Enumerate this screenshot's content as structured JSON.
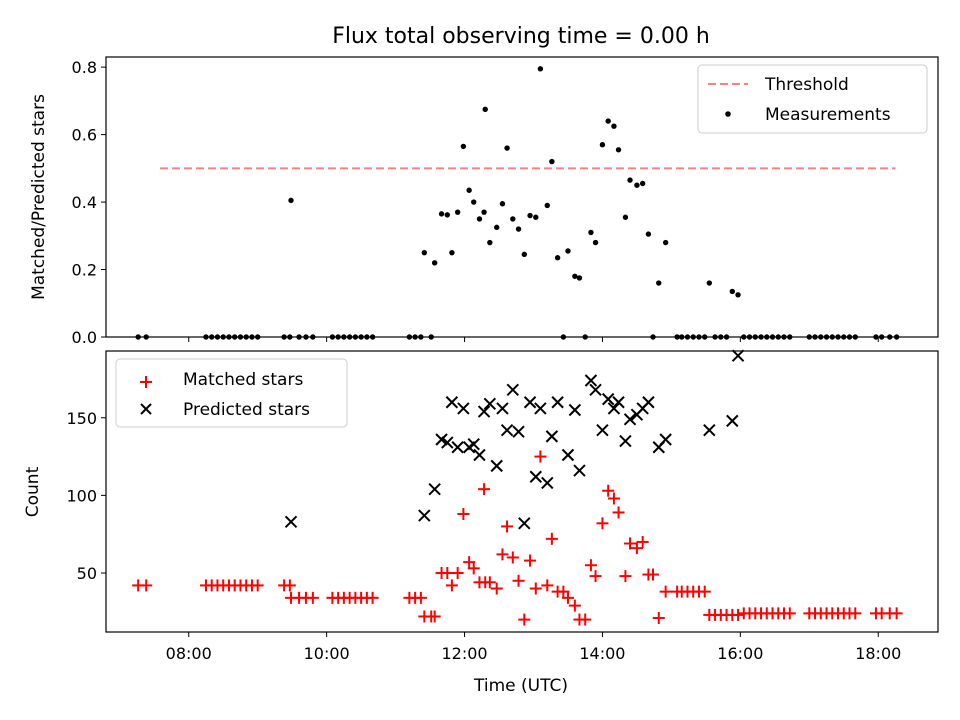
{
  "title": "Flux total observing time = 0.00 h",
  "colors": {
    "measurement": "#000000",
    "threshold": "#ff7f7f",
    "matched": "#ff0000",
    "predicted": "#000000"
  },
  "chart_data": [
    {
      "type": "scatter",
      "ylabel": "Matched/Predicted stars",
      "ylim": [
        0,
        0.83
      ],
      "yticks": [
        "0.0",
        "0.2",
        "0.4",
        "0.6",
        "0.8"
      ],
      "xlim": [
        "06:48",
        "18:52"
      ],
      "legend": {
        "position": "top-right",
        "entries": [
          "Threshold",
          "Measurements"
        ]
      },
      "threshold": {
        "name": "Threshold",
        "value": 0.5,
        "x_start": "07:35",
        "x_end": "18:15"
      },
      "series": [
        {
          "name": "Measurements",
          "marker": "dot",
          "points": [
            [
              "07:16",
              0
            ],
            [
              "07:23",
              0
            ],
            [
              "08:15",
              0
            ],
            [
              "08:20",
              0
            ],
            [
              "08:25",
              0
            ],
            [
              "08:30",
              0
            ],
            [
              "08:35",
              0
            ],
            [
              "08:40",
              0
            ],
            [
              "08:45",
              0
            ],
            [
              "08:50",
              0
            ],
            [
              "08:55",
              0
            ],
            [
              "09:00",
              0
            ],
            [
              "09:23",
              0
            ],
            [
              "09:28",
              0
            ],
            [
              "09:29",
              0.405
            ],
            [
              "09:36",
              0
            ],
            [
              "09:42",
              0
            ],
            [
              "09:48",
              0
            ],
            [
              "10:05",
              0
            ],
            [
              "10:10",
              0
            ],
            [
              "10:15",
              0
            ],
            [
              "10:20",
              0
            ],
            [
              "10:25",
              0
            ],
            [
              "10:30",
              0
            ],
            [
              "10:35",
              0
            ],
            [
              "10:40",
              0
            ],
            [
              "11:12",
              0
            ],
            [
              "11:17",
              0
            ],
            [
              "11:22",
              0
            ],
            [
              "11:25",
              0.25
            ],
            [
              "11:31",
              0
            ],
            [
              "11:34",
              0.22
            ],
            [
              "11:40",
              0.365
            ],
            [
              "11:45",
              0.362
            ],
            [
              "11:49",
              0.25
            ],
            [
              "11:54",
              0.37
            ],
            [
              "11:59",
              0.565
            ],
            [
              "12:04",
              0.435
            ],
            [
              "12:08",
              0.4
            ],
            [
              "12:13",
              0.35
            ],
            [
              "12:17",
              0.37
            ],
            [
              "12:18",
              0.675
            ],
            [
              "12:22",
              0.28
            ],
            [
              "12:28",
              0.325
            ],
            [
              "12:33",
              0.395
            ],
            [
              "12:37",
              0.56
            ],
            [
              "12:42",
              0.35
            ],
            [
              "12:47",
              0.32
            ],
            [
              "12:52",
              0.245
            ],
            [
              "12:57",
              0.36
            ],
            [
              "13:02",
              0.355
            ],
            [
              "13:06",
              0.795
            ],
            [
              "13:12",
              0.39
            ],
            [
              "13:16",
              0.52
            ],
            [
              "13:21",
              0.235
            ],
            [
              "13:26",
              0
            ],
            [
              "13:30",
              0.255
            ],
            [
              "13:36",
              0.18
            ],
            [
              "13:40",
              0.175
            ],
            [
              "13:45",
              0
            ],
            [
              "13:50",
              0.31
            ],
            [
              "13:54",
              0.28
            ],
            [
              "14:00",
              0.57
            ],
            [
              "14:05",
              0.64
            ],
            [
              "14:10",
              0.625
            ],
            [
              "14:14",
              0.555
            ],
            [
              "14:20",
              0.355
            ],
            [
              "14:24",
              0.465
            ],
            [
              "14:30",
              0.45
            ],
            [
              "14:35",
              0.455
            ],
            [
              "14:40",
              0.305
            ],
            [
              "14:44",
              0
            ],
            [
              "14:49",
              0.16
            ],
            [
              "14:55",
              0.28
            ],
            [
              "15:05",
              0
            ],
            [
              "15:09",
              0
            ],
            [
              "15:14",
              0
            ],
            [
              "15:19",
              0
            ],
            [
              "15:24",
              0
            ],
            [
              "15:29",
              0
            ],
            [
              "15:33",
              0.16
            ],
            [
              "15:38",
              0
            ],
            [
              "15:43",
              0
            ],
            [
              "15:48",
              0
            ],
            [
              "15:53",
              0.135
            ],
            [
              "15:58",
              0.125
            ],
            [
              "16:03",
              0
            ],
            [
              "16:08",
              0
            ],
            [
              "16:13",
              0
            ],
            [
              "16:18",
              0
            ],
            [
              "16:23",
              0
            ],
            [
              "16:28",
              0
            ],
            [
              "16:33",
              0
            ],
            [
              "16:38",
              0
            ],
            [
              "16:43",
              0
            ],
            [
              "17:00",
              0
            ],
            [
              "17:05",
              0
            ],
            [
              "17:10",
              0
            ],
            [
              "17:15",
              0
            ],
            [
              "17:20",
              0
            ],
            [
              "17:25",
              0
            ],
            [
              "17:30",
              0
            ],
            [
              "17:35",
              0
            ],
            [
              "17:40",
              0
            ],
            [
              "17:58",
              0
            ],
            [
              "18:03",
              0
            ],
            [
              "18:10",
              0
            ],
            [
              "18:16",
              0
            ]
          ]
        }
      ]
    },
    {
      "type": "scatter",
      "ylabel": "Count",
      "xlabel": "Time (UTC)",
      "ylim": [
        12,
        193
      ],
      "yticks": [
        "50",
        "100",
        "150"
      ],
      "xlim": [
        "06:48",
        "18:52"
      ],
      "xticks": [
        "08:00",
        "10:00",
        "12:00",
        "14:00",
        "16:00",
        "18:00"
      ],
      "legend": {
        "position": "top-left",
        "entries": [
          "Matched stars",
          "Predicted stars"
        ]
      },
      "series": [
        {
          "name": "Matched stars",
          "marker": "plus",
          "points": [
            [
              "07:16",
              42
            ],
            [
              "07:23",
              42
            ],
            [
              "08:15",
              42
            ],
            [
              "08:20",
              42
            ],
            [
              "08:25",
              42
            ],
            [
              "08:30",
              42
            ],
            [
              "08:35",
              42
            ],
            [
              "08:40",
              42
            ],
            [
              "08:45",
              42
            ],
            [
              "08:50",
              42
            ],
            [
              "08:55",
              42
            ],
            [
              "09:00",
              42
            ],
            [
              "09:23",
              42
            ],
            [
              "09:28",
              42
            ],
            [
              "09:29",
              34
            ],
            [
              "09:36",
              34
            ],
            [
              "09:42",
              34
            ],
            [
              "09:48",
              34
            ],
            [
              "10:05",
              34
            ],
            [
              "10:10",
              34
            ],
            [
              "10:15",
              34
            ],
            [
              "10:20",
              34
            ],
            [
              "10:25",
              34
            ],
            [
              "10:30",
              34
            ],
            [
              "10:35",
              34
            ],
            [
              "10:40",
              34
            ],
            [
              "11:12",
              34
            ],
            [
              "11:17",
              34
            ],
            [
              "11:22",
              34
            ],
            [
              "11:25",
              22
            ],
            [
              "11:31",
              22
            ],
            [
              "11:34",
              22
            ],
            [
              "11:40",
              50
            ],
            [
              "11:45",
              50
            ],
            [
              "11:49",
              42
            ],
            [
              "11:54",
              50
            ],
            [
              "11:59",
              88
            ],
            [
              "12:04",
              57
            ],
            [
              "12:08",
              53
            ],
            [
              "12:13",
              44
            ],
            [
              "12:17",
              104
            ],
            [
              "12:18",
              44
            ],
            [
              "12:22",
              44
            ],
            [
              "12:28",
              40
            ],
            [
              "12:33",
              62
            ],
            [
              "12:37",
              80
            ],
            [
              "12:42",
              60
            ],
            [
              "12:47",
              45
            ],
            [
              "12:52",
              20
            ],
            [
              "12:57",
              58
            ],
            [
              "13:02",
              40
            ],
            [
              "13:06",
              125
            ],
            [
              "13:12",
              42
            ],
            [
              "13:16",
              72
            ],
            [
              "13:21",
              38
            ],
            [
              "13:26",
              38
            ],
            [
              "13:30",
              34
            ],
            [
              "13:36",
              29
            ],
            [
              "13:40",
              20
            ],
            [
              "13:45",
              20
            ],
            [
              "13:50",
              55
            ],
            [
              "13:54",
              48
            ],
            [
              "14:00",
              82
            ],
            [
              "14:05",
              103
            ],
            [
              "14:10",
              98
            ],
            [
              "14:14",
              89
            ],
            [
              "14:20",
              48
            ],
            [
              "14:24",
              69
            ],
            [
              "14:30",
              66
            ],
            [
              "14:35",
              70
            ],
            [
              "14:40",
              49
            ],
            [
              "14:44",
              49
            ],
            [
              "14:49",
              21
            ],
            [
              "14:55",
              38
            ],
            [
              "15:05",
              38
            ],
            [
              "15:09",
              38
            ],
            [
              "15:14",
              38
            ],
            [
              "15:19",
              38
            ],
            [
              "15:24",
              38
            ],
            [
              "15:29",
              38
            ],
            [
              "15:33",
              23
            ],
            [
              "15:38",
              23
            ],
            [
              "15:43",
              23
            ],
            [
              "15:48",
              23
            ],
            [
              "15:53",
              23
            ],
            [
              "15:58",
              23
            ],
            [
              "16:03",
              24
            ],
            [
              "16:08",
              24
            ],
            [
              "16:13",
              24
            ],
            [
              "16:18",
              24
            ],
            [
              "16:23",
              24
            ],
            [
              "16:28",
              24
            ],
            [
              "16:33",
              24
            ],
            [
              "16:38",
              24
            ],
            [
              "16:43",
              24
            ],
            [
              "17:00",
              24
            ],
            [
              "17:05",
              24
            ],
            [
              "17:10",
              24
            ],
            [
              "17:15",
              24
            ],
            [
              "17:20",
              24
            ],
            [
              "17:25",
              24
            ],
            [
              "17:30",
              24
            ],
            [
              "17:35",
              24
            ],
            [
              "17:40",
              24
            ],
            [
              "17:58",
              24
            ],
            [
              "18:03",
              24
            ],
            [
              "18:10",
              24
            ],
            [
              "18:16",
              24
            ]
          ]
        },
        {
          "name": "Predicted stars",
          "marker": "x",
          "points": [
            [
              "09:29",
              83
            ],
            [
              "11:25",
              87
            ],
            [
              "11:34",
              104
            ],
            [
              "11:40",
              136
            ],
            [
              "11:45",
              134
            ],
            [
              "11:49",
              160
            ],
            [
              "11:54",
              131
            ],
            [
              "11:59",
              156
            ],
            [
              "12:04",
              131
            ],
            [
              "12:08",
              133
            ],
            [
              "12:13",
              126
            ],
            [
              "12:17",
              154
            ],
            [
              "12:22",
              159
            ],
            [
              "12:28",
              119
            ],
            [
              "12:33",
              156
            ],
            [
              "12:37",
              142
            ],
            [
              "12:42",
              168
            ],
            [
              "12:47",
              141
            ],
            [
              "12:52",
              82
            ],
            [
              "12:57",
              160
            ],
            [
              "13:02",
              112
            ],
            [
              "13:06",
              156
            ],
            [
              "13:12",
              108
            ],
            [
              "13:16",
              138
            ],
            [
              "13:21",
              160
            ],
            [
              "13:30",
              126
            ],
            [
              "13:36",
              155
            ],
            [
              "13:40",
              116
            ],
            [
              "13:50",
              174
            ],
            [
              "13:54",
              168
            ],
            [
              "14:00",
              142
            ],
            [
              "14:05",
              162
            ],
            [
              "14:10",
              156
            ],
            [
              "14:14",
              160
            ],
            [
              "14:20",
              135
            ],
            [
              "14:24",
              149
            ],
            [
              "14:30",
              152
            ],
            [
              "14:35",
              156
            ],
            [
              "14:40",
              160
            ],
            [
              "14:49",
              131
            ],
            [
              "14:55",
              136
            ],
            [
              "15:33",
              142
            ],
            [
              "15:53",
              148
            ],
            [
              "15:58",
              190
            ]
          ]
        }
      ]
    }
  ]
}
